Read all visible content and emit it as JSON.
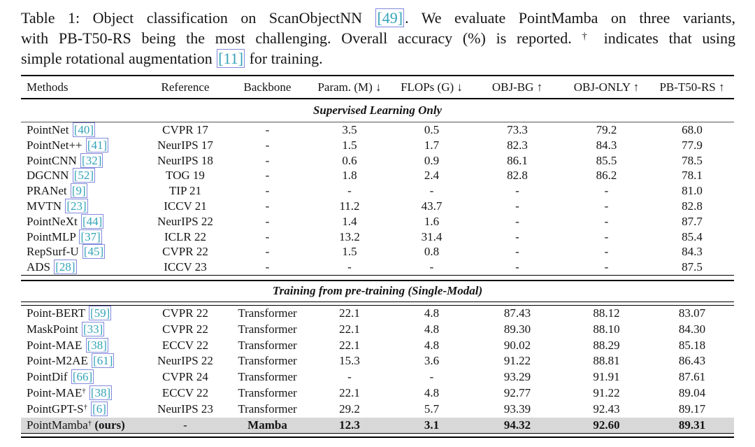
{
  "caption": {
    "line1_text": "Table 1: Object classification on ScanObjectNN ",
    "line1_cite": "[49]",
    "line1_end": ". We evaluate PointMamba on three variants,",
    "line2_pre": "with PB-T50-RS being the most challenging. Overall accuracy (%) is reported. ",
    "line2_dagger": "†",
    "line2_post": " indicates that using",
    "line3_pre": "simple rotational augmentation ",
    "line3_cite": "[11]",
    "line3_post": " for training."
  },
  "table": {
    "columns": [
      "Methods",
      "Reference",
      "Backbone",
      "Param. (M) ↓",
      "FLOPs (G) ↓",
      "OBJ-BG ↑",
      "OBJ-ONLY ↑",
      "PB-T50-RS ↑"
    ],
    "sections": [
      {
        "title": "Supervised Learning Only",
        "rows": [
          {
            "method": "PointNet",
            "dagger": "",
            "cite": "[40]",
            "ours": "",
            "highlight": false,
            "bold": false,
            "cells": [
              "CVPR 17",
              "-",
              "3.5",
              "0.5",
              "73.3",
              "79.2",
              "68.0"
            ]
          },
          {
            "method": "PointNet++",
            "dagger": "",
            "cite": "[41]",
            "ours": "",
            "highlight": false,
            "bold": false,
            "cells": [
              "NeurIPS 17",
              "-",
              "1.5",
              "1.7",
              "82.3",
              "84.3",
              "77.9"
            ]
          },
          {
            "method": "PointCNN",
            "dagger": "",
            "cite": "[32]",
            "ours": "",
            "highlight": false,
            "bold": false,
            "cells": [
              "NeurIPS 18",
              "-",
              "0.6",
              "0.9",
              "86.1",
              "85.5",
              "78.5"
            ]
          },
          {
            "method": "DGCNN",
            "dagger": "",
            "cite": "[52]",
            "ours": "",
            "highlight": false,
            "bold": false,
            "cells": [
              "TOG 19",
              "-",
              "1.8",
              "2.4",
              "82.8",
              "86.2",
              "78.1"
            ]
          },
          {
            "method": "PRANet",
            "dagger": "",
            "cite": "[9]",
            "ours": "",
            "highlight": false,
            "bold": false,
            "cells": [
              "TIP 21",
              "-",
              "-",
              "-",
              "-",
              "-",
              "81.0"
            ]
          },
          {
            "method": "MVTN",
            "dagger": "",
            "cite": "[23]",
            "ours": "",
            "highlight": false,
            "bold": false,
            "cells": [
              "ICCV 21",
              "-",
              "11.2",
              "43.7",
              "-",
              "-",
              "82.8"
            ]
          },
          {
            "method": "PointNeXt",
            "dagger": "",
            "cite": "[44]",
            "ours": "",
            "highlight": false,
            "bold": false,
            "cells": [
              "NeurIPS 22",
              "-",
              "1.4",
              "1.6",
              "-",
              "-",
              "87.7"
            ]
          },
          {
            "method": "PointMLP",
            "dagger": "",
            "cite": "[37]",
            "ours": "",
            "highlight": false,
            "bold": false,
            "cells": [
              "ICLR 22",
              "-",
              "13.2",
              "31.4",
              "-",
              "-",
              "85.4"
            ]
          },
          {
            "method": "RepSurf-U",
            "dagger": "",
            "cite": "[45]",
            "ours": "",
            "highlight": false,
            "bold": false,
            "cells": [
              "CVPR 22",
              "-",
              "1.5",
              "0.8",
              "-",
              "-",
              "84.3"
            ]
          },
          {
            "method": "ADS",
            "dagger": "",
            "cite": "[28]",
            "ours": "",
            "highlight": false,
            "bold": false,
            "cells": [
              "ICCV 23",
              "-",
              "-",
              "-",
              "-",
              "-",
              "87.5"
            ]
          }
        ]
      },
      {
        "title": "Training from pre-training (Single-Modal)",
        "rows": [
          {
            "method": "Point-BERT",
            "dagger": "",
            "cite": "[59]",
            "ours": "",
            "highlight": false,
            "bold": false,
            "cells": [
              "CVPR 22",
              "Transformer",
              "22.1",
              "4.8",
              "87.43",
              "88.12",
              "83.07"
            ]
          },
          {
            "method": "MaskPoint",
            "dagger": "",
            "cite": "[33]",
            "ours": "",
            "highlight": false,
            "bold": false,
            "cells": [
              "CVPR 22",
              "Transformer",
              "22.1",
              "4.8",
              "89.30",
              "88.10",
              "84.30"
            ]
          },
          {
            "method": "Point-MAE",
            "dagger": "",
            "cite": "[38]",
            "ours": "",
            "highlight": false,
            "bold": false,
            "cells": [
              "ECCV 22",
              "Transformer",
              "22.1",
              "4.8",
              "90.02",
              "88.29",
              "85.18"
            ]
          },
          {
            "method": "Point-M2AE",
            "dagger": "",
            "cite": "[61]",
            "ours": "",
            "highlight": false,
            "bold": false,
            "cells": [
              "NeurIPS 22",
              "Transformer",
              "15.3",
              "3.6",
              "91.22",
              "88.81",
              "86.43"
            ]
          },
          {
            "method": "PointDif",
            "dagger": "",
            "cite": "[66]",
            "ours": "",
            "highlight": false,
            "bold": false,
            "cells": [
              "CVPR 24",
              "Transformer",
              "-",
              "-",
              "93.29",
              "91.91",
              "87.61"
            ]
          },
          {
            "method": "Point-MAE",
            "dagger": "†",
            "cite": "[38]",
            "ours": "",
            "highlight": false,
            "bold": false,
            "cells": [
              "ECCV 22",
              "Transformer",
              "22.1",
              "4.8",
              "92.77",
              "91.22",
              "89.04"
            ]
          },
          {
            "method": "PointGPT-S",
            "dagger": "†",
            "cite": "[6]",
            "ours": "",
            "highlight": false,
            "bold": false,
            "cells": [
              "NeurIPS 23",
              "Transformer",
              "29.2",
              "5.7",
              "93.39",
              "92.43",
              "89.17"
            ]
          },
          {
            "method": "PointMamba",
            "dagger": "†",
            "cite": "",
            "ours": "(ours)",
            "highlight": true,
            "bold": true,
            "cells": [
              "-",
              "Mamba",
              "12.3",
              "3.1",
              "94.32",
              "92.60",
              "89.31"
            ]
          }
        ]
      }
    ]
  },
  "colors": {
    "citation_text": "#33a3b8",
    "citation_border": "#8289dc",
    "highlight_row": "#d8d8d8"
  }
}
